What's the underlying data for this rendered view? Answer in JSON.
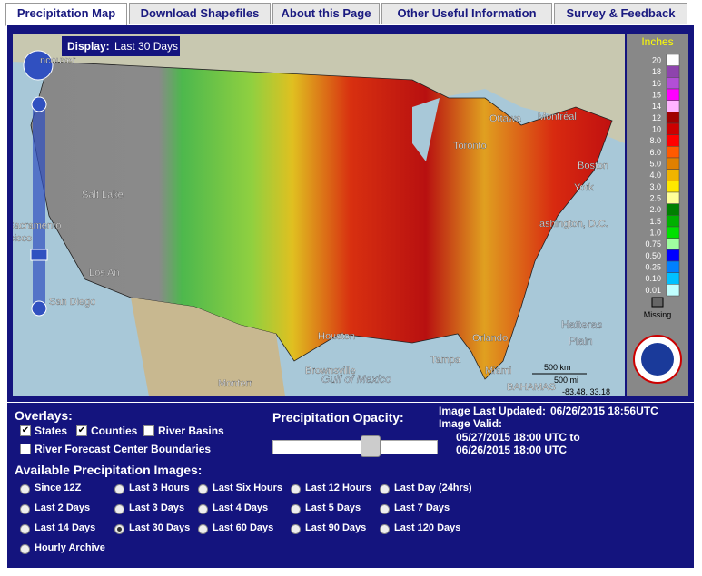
{
  "tabs": [
    {
      "label": "Precipitation Map",
      "active": true
    },
    {
      "label": "Download Shapefiles",
      "active": false
    },
    {
      "label": "About this Page",
      "active": false
    },
    {
      "label": "Other Useful Information",
      "active": false
    },
    {
      "label": "Survey & Feedback",
      "active": false
    }
  ],
  "map": {
    "display_label": "Display:",
    "display_value": "Last 30 Days",
    "places": [
      "ncouver",
      "Ottawa",
      "Montréal",
      "Toronto",
      "Boston",
      "York",
      "ashington, D.C.",
      "Salt Lake",
      "Sacramento",
      "ncisco",
      "Los An",
      "San Diego",
      "Houston",
      "Orlando",
      "Tampa",
      "Miami",
      "Brownsville",
      "Monterr",
      "Gulf of Mexico",
      "Hatteras",
      "Plain",
      "BAHAMAS"
    ],
    "scale_km": "500 km",
    "scale_mi": "500 mi",
    "coords": "-83.48, 33.18"
  },
  "legend": {
    "title": "Inches",
    "missing": "Missing",
    "items": [
      {
        "label": "20",
        "color": "#fefefe"
      },
      {
        "label": "18",
        "color": "#8e44ad"
      },
      {
        "label": "16",
        "color": "#b24fd6"
      },
      {
        "label": "15",
        "color": "#ff00ff"
      },
      {
        "label": "14",
        "color": "#ffb4ff"
      },
      {
        "label": "12",
        "color": "#a00000"
      },
      {
        "label": "10",
        "color": "#cc0000"
      },
      {
        "label": "8.0",
        "color": "#ff0000"
      },
      {
        "label": "6.0",
        "color": "#ff5a00"
      },
      {
        "label": "5.0",
        "color": "#e08000"
      },
      {
        "label": "4.0",
        "color": "#f0b400"
      },
      {
        "label": "3.0",
        "color": "#ffe800"
      },
      {
        "label": "2.5",
        "color": "#ffff99"
      },
      {
        "label": "2.0",
        "color": "#008000"
      },
      {
        "label": "1.5",
        "color": "#00b000"
      },
      {
        "label": "1.0",
        "color": "#00e000"
      },
      {
        "label": "0.75",
        "color": "#a0ffa0"
      },
      {
        "label": "0.50",
        "color": "#0000ff"
      },
      {
        "label": "0.25",
        "color": "#0080ff"
      },
      {
        "label": "0.10",
        "color": "#00c0ff"
      },
      {
        "label": "0.01",
        "color": "#c0ffff"
      }
    ]
  },
  "overlays": {
    "title": "Overlays:",
    "options": [
      {
        "label": "States",
        "checked": true
      },
      {
        "label": "Counties",
        "checked": true
      },
      {
        "label": "River Basins",
        "checked": false
      },
      {
        "label": "River Forecast Center Boundaries",
        "checked": false
      }
    ]
  },
  "opacity": {
    "title": "Precipitation Opacity:"
  },
  "status": {
    "updated_label": "Image Last Updated:",
    "updated": "06/26/2015 18:56UTC",
    "valid_label": "Image Valid:",
    "valid_from": "05/27/2015 18:00 UTC to",
    "valid_to": "06/26/2015 18:00 UTC"
  },
  "images": {
    "title": "Available Precipitation Images:",
    "options": [
      {
        "label": "Since 12Z",
        "selected": false
      },
      {
        "label": "Last 3 Hours",
        "selected": false
      },
      {
        "label": "Last Six Hours",
        "selected": false
      },
      {
        "label": "Last 12 Hours",
        "selected": false
      },
      {
        "label": "Last Day (24hrs)",
        "selected": false
      },
      {
        "label": "Last 2 Days",
        "selected": false
      },
      {
        "label": "Last 3 Days",
        "selected": false
      },
      {
        "label": "Last 4 Days",
        "selected": false
      },
      {
        "label": "Last 5 Days",
        "selected": false
      },
      {
        "label": "Last 7 Days",
        "selected": false
      },
      {
        "label": "Last 14 Days",
        "selected": false
      },
      {
        "label": "Last 30 Days",
        "selected": true
      },
      {
        "label": "Last 60 Days",
        "selected": false
      },
      {
        "label": "Last 90 Days",
        "selected": false
      },
      {
        "label": "Last 120 Days",
        "selected": false
      },
      {
        "label": "Hourly Archive",
        "selected": false
      }
    ]
  }
}
